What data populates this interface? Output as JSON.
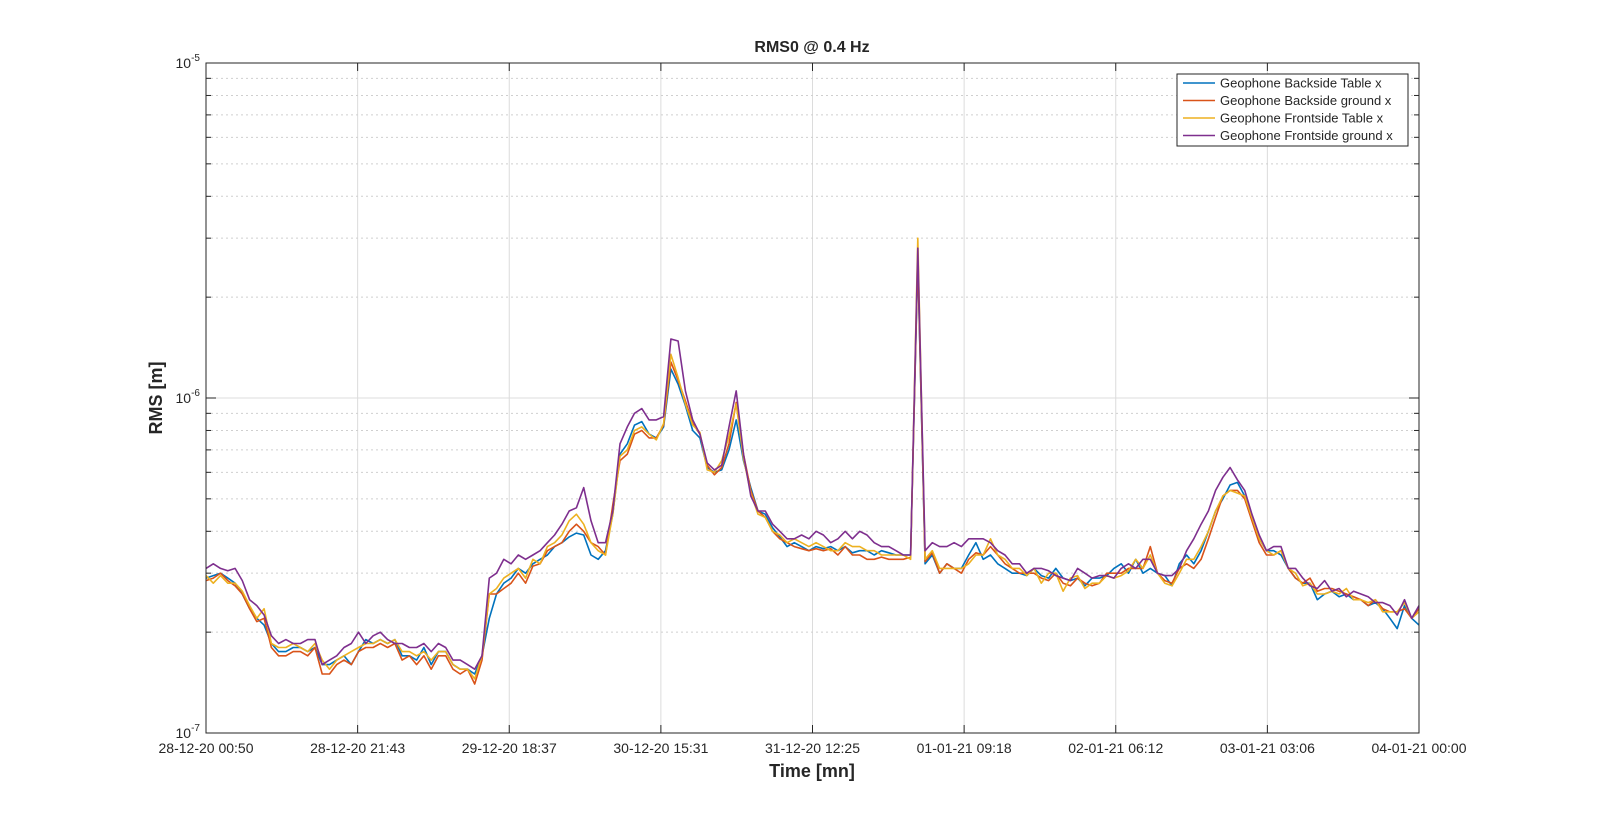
{
  "chart_data": {
    "type": "line",
    "title": "RMS0 @ 0.4 Hz",
    "xlabel": "Time [mn]",
    "ylabel": "RMS [m]",
    "yscale": "log",
    "ylim": [
      1e-07,
      1e-05
    ],
    "ytick_labels": [
      {
        "base": "10",
        "exp": "-7"
      },
      {
        "base": "10",
        "exp": "-6"
      },
      {
        "base": "10",
        "exp": "-5"
      }
    ],
    "xtick_labels": [
      "28-12-20 00:50",
      "28-12-20 21:43",
      "29-12-20 18:37",
      "30-12-20 15:31",
      "31-12-20 12:25",
      "01-01-21 09:18",
      "02-01-21 06:12",
      "03-01-21 03:06",
      "04-01-21 00:00"
    ],
    "xlim_days": [
      0,
      8
    ],
    "x_unit": "days from 28-12-20 00:50",
    "grid": true,
    "legend_position": "top-right",
    "series": [
      {
        "name": "Geophone Backside Table x",
        "color": "#0072BD",
        "values": [
          2.9e-07,
          2.95e-07,
          3e-07,
          2.9e-07,
          2.8e-07,
          2.6e-07,
          2.35e-07,
          2.2e-07,
          2.1e-07,
          1.85e-07,
          1.75e-07,
          1.75e-07,
          1.8e-07,
          1.8e-07,
          1.75e-07,
          1.8e-07,
          1.6e-07,
          1.6e-07,
          1.65e-07,
          1.7e-07,
          1.6e-07,
          1.75e-07,
          1.9e-07,
          1.85e-07,
          1.9e-07,
          1.85e-07,
          1.9e-07,
          1.7e-07,
          1.7e-07,
          1.65e-07,
          1.8e-07,
          1.6e-07,
          1.75e-07,
          1.75e-07,
          1.6e-07,
          1.55e-07,
          1.55e-07,
          1.5e-07,
          1.7e-07,
          2.2e-07,
          2.6e-07,
          2.8e-07,
          2.9e-07,
          3.1e-07,
          3e-07,
          3.2e-07,
          3.3e-07,
          3.4e-07,
          3.6e-07,
          3.7e-07,
          3.85e-07,
          3.95e-07,
          3.9e-07,
          3.4e-07,
          3.3e-07,
          3.5e-07,
          4.5e-07,
          6.8e-07,
          7.3e-07,
          8.3e-07,
          8.5e-07,
          7.8e-07,
          7.6e-07,
          8.2e-07,
          1.22e-06,
          1.1e-06,
          9.5e-07,
          8e-07,
          7.6e-07,
          6.2e-07,
          6e-07,
          6.1e-07,
          7e-07,
          8.6e-07,
          6.5e-07,
          5.4e-07,
          4.6e-07,
          4.5e-07,
          4.1e-07,
          3.85e-07,
          3.6e-07,
          3.7e-07,
          3.6e-07,
          3.5e-07,
          3.6e-07,
          3.55e-07,
          3.6e-07,
          3.5e-07,
          3.6e-07,
          3.45e-07,
          3.5e-07,
          3.5e-07,
          3.4e-07,
          3.5e-07,
          3.45e-07,
          3.4e-07,
          3.4e-07,
          3.4e-07,
          2.55e-06,
          3.2e-07,
          3.4e-07,
          3e-07,
          3.2e-07,
          3.1e-07,
          3.1e-07,
          3.4e-07,
          3.7e-07,
          3.3e-07,
          3.4e-07,
          3.2e-07,
          3.1e-07,
          3e-07,
          3e-07,
          2.95e-07,
          3.1e-07,
          2.95e-07,
          2.9e-07,
          3.1e-07,
          2.9e-07,
          2.85e-07,
          2.9e-07,
          2.75e-07,
          2.9e-07,
          2.9e-07,
          2.95e-07,
          3.1e-07,
          3.2e-07,
          3e-07,
          3.3e-07,
          3e-07,
          3.1e-07,
          3e-07,
          2.95e-07,
          2.75e-07,
          3.2e-07,
          3.4e-07,
          3.2e-07,
          3.5e-07,
          4e-07,
          4.6e-07,
          5e-07,
          5.5e-07,
          5.6e-07,
          5.1e-07,
          4.4e-07,
          3.8e-07,
          3.5e-07,
          3.5e-07,
          3.4e-07,
          3.1e-07,
          2.9e-07,
          2.8e-07,
          2.8e-07,
          2.5e-07,
          2.6e-07,
          2.65e-07,
          2.55e-07,
          2.6e-07,
          2.5e-07,
          2.5e-07,
          2.4e-07,
          2.45e-07,
          2.35e-07,
          2.2e-07,
          2.05e-07,
          2.4e-07,
          2.2e-07,
          2.1e-07
        ]
      },
      {
        "name": "Geophone Backside ground x",
        "color": "#D95319",
        "values": [
          2.85e-07,
          2.9e-07,
          3e-07,
          2.85e-07,
          2.75e-07,
          2.6e-07,
          2.35e-07,
          2.15e-07,
          2.2e-07,
          1.8e-07,
          1.7e-07,
          1.7e-07,
          1.75e-07,
          1.75e-07,
          1.7e-07,
          1.8e-07,
          1.5e-07,
          1.5e-07,
          1.6e-07,
          1.65e-07,
          1.6e-07,
          1.75e-07,
          1.8e-07,
          1.8e-07,
          1.85e-07,
          1.8e-07,
          1.85e-07,
          1.65e-07,
          1.7e-07,
          1.6e-07,
          1.7e-07,
          1.55e-07,
          1.7e-07,
          1.7e-07,
          1.55e-07,
          1.5e-07,
          1.55e-07,
          1.4e-07,
          1.65e-07,
          2.6e-07,
          2.6e-07,
          2.7e-07,
          2.8e-07,
          3e-07,
          2.8e-07,
          3.15e-07,
          3.2e-07,
          3.5e-07,
          3.6e-07,
          3.7e-07,
          4e-07,
          4.2e-07,
          4e-07,
          3.7e-07,
          3.6e-07,
          3.4e-07,
          4.8e-07,
          6.5e-07,
          6.8e-07,
          7.8e-07,
          8e-07,
          7.6e-07,
          7.6e-07,
          8.3e-07,
          1.28e-06,
          1.13e-06,
          9.8e-07,
          8.4e-07,
          7.8e-07,
          6.3e-07,
          5.9e-07,
          6.2e-07,
          7.3e-07,
          9.7e-07,
          6.8e-07,
          5.3e-07,
          4.6e-07,
          4.4e-07,
          4e-07,
          3.8e-07,
          3.7e-07,
          3.6e-07,
          3.55e-07,
          3.5e-07,
          3.55e-07,
          3.5e-07,
          3.55e-07,
          3.4e-07,
          3.6e-07,
          3.4e-07,
          3.4e-07,
          3.3e-07,
          3.3e-07,
          3.35e-07,
          3.3e-07,
          3.3e-07,
          3.3e-07,
          3.35e-07,
          2.6e-06,
          3.25e-07,
          3.45e-07,
          3e-07,
          3.2e-07,
          3.1e-07,
          3e-07,
          3.3e-07,
          3.45e-07,
          3.4e-07,
          3.6e-07,
          3.4e-07,
          3.2e-07,
          3.1e-07,
          3e-07,
          3e-07,
          3e-07,
          2.9e-07,
          2.85e-07,
          3e-07,
          2.8e-07,
          2.75e-07,
          2.9e-07,
          2.8e-07,
          2.75e-07,
          2.8e-07,
          3e-07,
          3e-07,
          3e-07,
          3.1e-07,
          3.1e-07,
          3.1e-07,
          3.6e-07,
          3e-07,
          2.85e-07,
          2.8e-07,
          3.1e-07,
          3.2e-07,
          3.1e-07,
          3.3e-07,
          3.8e-07,
          4.4e-07,
          5.1e-07,
          5.3e-07,
          5.3e-07,
          5e-07,
          4.3e-07,
          3.7e-07,
          3.4e-07,
          3.4e-07,
          3.5e-07,
          3.1e-07,
          2.9e-07,
          2.8e-07,
          2.9e-07,
          2.65e-07,
          2.7e-07,
          2.7e-07,
          2.65e-07,
          2.6e-07,
          2.55e-07,
          2.5e-07,
          2.4e-07,
          2.5e-07,
          2.35e-07,
          2.3e-07,
          2.3e-07,
          2.35e-07,
          2.2e-07,
          2.35e-07
        ]
      },
      {
        "name": "Geophone Frontside Table x",
        "color": "#EDB120",
        "values": [
          2.95e-07,
          2.8e-07,
          2.95e-07,
          2.8e-07,
          2.8e-07,
          2.65e-07,
          2.4e-07,
          2.2e-07,
          2.35e-07,
          1.85e-07,
          1.8e-07,
          1.8e-07,
          1.85e-07,
          1.8e-07,
          1.75e-07,
          1.85e-07,
          1.65e-07,
          1.55e-07,
          1.65e-07,
          1.7e-07,
          1.75e-07,
          1.8e-07,
          1.85e-07,
          1.85e-07,
          1.9e-07,
          1.85e-07,
          1.9e-07,
          1.75e-07,
          1.75e-07,
          1.7e-07,
          1.75e-07,
          1.65e-07,
          1.75e-07,
          1.75e-07,
          1.6e-07,
          1.55e-07,
          1.55e-07,
          1.45e-07,
          1.7e-07,
          2.6e-07,
          2.7e-07,
          2.9e-07,
          3e-07,
          3.1e-07,
          2.9e-07,
          3.3e-07,
          3.2e-07,
          3.6e-07,
          3.7e-07,
          3.9e-07,
          4.3e-07,
          4.5e-07,
          4.2e-07,
          3.7e-07,
          3.5e-07,
          3.4e-07,
          4.5e-07,
          6.7e-07,
          7e-07,
          8e-07,
          8.2e-07,
          7.8e-07,
          7.5e-07,
          8.4e-07,
          1.35e-06,
          1.15e-06,
          9.6e-07,
          8.3e-07,
          7.9e-07,
          6.1e-07,
          6e-07,
          6.5e-07,
          7.7e-07,
          9.6e-07,
          6.6e-07,
          5.2e-07,
          4.5e-07,
          4.4e-07,
          4e-07,
          3.9e-07,
          3.7e-07,
          3.8e-07,
          3.7e-07,
          3.6e-07,
          3.7e-07,
          3.6e-07,
          3.5e-07,
          3.5e-07,
          3.7e-07,
          3.6e-07,
          3.6e-07,
          3.5e-07,
          3.5e-07,
          3.4e-07,
          3.4e-07,
          3.4e-07,
          3.4e-07,
          3.3e-07,
          3e-06,
          3.3e-07,
          3.5e-07,
          3.1e-07,
          3.1e-07,
          3.1e-07,
          3.1e-07,
          3.2e-07,
          3.4e-07,
          3.4e-07,
          3.8e-07,
          3.4e-07,
          3.3e-07,
          3.1e-07,
          3.1e-07,
          2.95e-07,
          3.1e-07,
          2.8e-07,
          3e-07,
          3e-07,
          2.65e-07,
          2.9e-07,
          2.95e-07,
          2.7e-07,
          2.8e-07,
          2.8e-07,
          2.95e-07,
          2.9e-07,
          2.95e-07,
          3.05e-07,
          3.3e-07,
          3.1e-07,
          3.4e-07,
          3e-07,
          2.8e-07,
          2.75e-07,
          3e-07,
          3.3e-07,
          3.3e-07,
          3.6e-07,
          4e-07,
          4.6e-07,
          5.1e-07,
          5.3e-07,
          5.2e-07,
          5.1e-07,
          4.4e-07,
          3.8e-07,
          3.5e-07,
          3.4e-07,
          3.5e-07,
          3.1e-07,
          3e-07,
          2.75e-07,
          2.8e-07,
          2.6e-07,
          2.6e-07,
          2.65e-07,
          2.6e-07,
          2.7e-07,
          2.5e-07,
          2.5e-07,
          2.45e-07,
          2.5e-07,
          2.3e-07,
          2.3e-07,
          2.3e-07,
          2.45e-07,
          2.2e-07,
          2.3e-07
        ]
      },
      {
        "name": "Geophone Frontside ground x",
        "color": "#7E2F8E",
        "values": [
          3.1e-07,
          3.2e-07,
          3.1e-07,
          3.05e-07,
          3.1e-07,
          2.85e-07,
          2.5e-07,
          2.4e-07,
          2.25e-07,
          1.95e-07,
          1.85e-07,
          1.9e-07,
          1.85e-07,
          1.85e-07,
          1.9e-07,
          1.9e-07,
          1.6e-07,
          1.65e-07,
          1.7e-07,
          1.8e-07,
          1.85e-07,
          2e-07,
          1.85e-07,
          1.95e-07,
          2e-07,
          1.9e-07,
          1.85e-07,
          1.85e-07,
          1.8e-07,
          1.8e-07,
          1.85e-07,
          1.75e-07,
          1.85e-07,
          1.8e-07,
          1.65e-07,
          1.65e-07,
          1.6e-07,
          1.55e-07,
          1.7e-07,
          2.9e-07,
          3e-07,
          3.3e-07,
          3.2e-07,
          3.4e-07,
          3.3e-07,
          3.4e-07,
          3.5e-07,
          3.7e-07,
          3.9e-07,
          4.2e-07,
          4.6e-07,
          4.7e-07,
          5.4e-07,
          4.3e-07,
          3.7e-07,
          3.7e-07,
          4.6e-07,
          7.3e-07,
          8.2e-07,
          9e-07,
          9.3e-07,
          8.6e-07,
          8.6e-07,
          8.8e-07,
          1.5e-06,
          1.48e-06,
          1.05e-06,
          8.6e-07,
          7.8e-07,
          6.4e-07,
          6.1e-07,
          6.3e-07,
          8.2e-07,
          1.05e-06,
          6.8e-07,
          5.1e-07,
          4.6e-07,
          4.6e-07,
          4.2e-07,
          4e-07,
          3.8e-07,
          3.8e-07,
          3.9e-07,
          3.8e-07,
          4e-07,
          3.9e-07,
          3.7e-07,
          3.8e-07,
          4e-07,
          3.8e-07,
          4e-07,
          3.9e-07,
          3.7e-07,
          3.6e-07,
          3.6e-07,
          3.5e-07,
          3.4e-07,
          3.4e-07,
          2.8e-06,
          3.5e-07,
          3.7e-07,
          3.6e-07,
          3.6e-07,
          3.7e-07,
          3.6e-07,
          3.8e-07,
          3.8e-07,
          3.8e-07,
          3.7e-07,
          3.5e-07,
          3.4e-07,
          3.2e-07,
          3.2e-07,
          3e-07,
          3.1e-07,
          3.1e-07,
          3.05e-07,
          2.95e-07,
          2.9e-07,
          2.85e-07,
          3.1e-07,
          3e-07,
          2.9e-07,
          2.95e-07,
          2.95e-07,
          2.9e-07,
          3.1e-07,
          3.2e-07,
          3.1e-07,
          3.3e-07,
          3.3e-07,
          3e-07,
          2.95e-07,
          2.95e-07,
          3.1e-07,
          3.5e-07,
          3.8e-07,
          4.2e-07,
          4.6e-07,
          5.3e-07,
          5.8e-07,
          6.2e-07,
          5.7e-07,
          5.3e-07,
          4.5e-07,
          3.9e-07,
          3.5e-07,
          3.6e-07,
          3.6e-07,
          3.1e-07,
          3.1e-07,
          2.9e-07,
          2.75e-07,
          2.7e-07,
          2.85e-07,
          2.65e-07,
          2.7e-07,
          2.55e-07,
          2.65e-07,
          2.6e-07,
          2.55e-07,
          2.45e-07,
          2.45e-07,
          2.4e-07,
          2.25e-07,
          2.5e-07,
          2.2e-07,
          2.4e-07
        ]
      }
    ]
  }
}
